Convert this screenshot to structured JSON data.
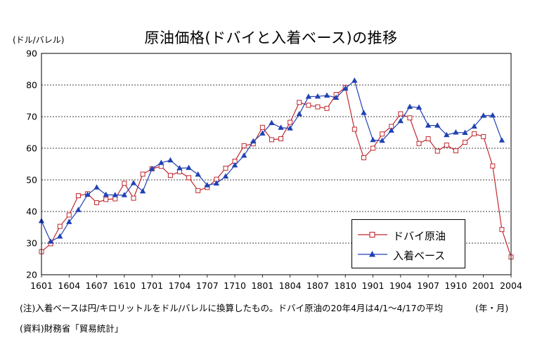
{
  "chart_data": {
    "type": "line",
    "title": "原油価格(ドバイと入着ベース)の推移",
    "ylabel": "(ドル/バレル)",
    "xlabel": "(年・月)",
    "ylim": [
      20,
      90
    ],
    "yticks": [
      20,
      30,
      40,
      50,
      60,
      70,
      80,
      90
    ],
    "grid": "horizontal dashed",
    "legend": "bottom-right",
    "x_tick_labels": [
      "1601",
      "1604",
      "1607",
      "1610",
      "1701",
      "1704",
      "1707",
      "1710",
      "1801",
      "1804",
      "1807",
      "1810",
      "1901",
      "1904",
      "1907",
      "1910",
      "2001",
      "2004"
    ],
    "x_range": [
      "2016-01",
      "2020-04"
    ],
    "series": [
      {
        "name": "ドバイ原油",
        "color": "#c0282e",
        "marker": "square",
        "start": "2016-01",
        "values": [
          27.3,
          29.8,
          35.3,
          38.9,
          45.0,
          45.6,
          42.8,
          43.8,
          44.0,
          48.9,
          44.2,
          51.8,
          53.5,
          54.3,
          51.4,
          52.6,
          50.7,
          46.6,
          47.6,
          50.2,
          53.7,
          55.9,
          60.8,
          61.4,
          66.6,
          62.7,
          63.0,
          68.2,
          74.5,
          73.6,
          73.1,
          72.6,
          77.0,
          79.2,
          66.0,
          57.0,
          60.0,
          64.5,
          66.9,
          70.9,
          69.6,
          61.5,
          63.0,
          59.1,
          61.0,
          59.2,
          61.9,
          64.6,
          63.7,
          54.4,
          34.3,
          25.6
        ]
      },
      {
        "name": "入着ベース",
        "color": "#2142b5",
        "marker": "triangle",
        "start": "2016-01",
        "values": [
          37.0,
          30.5,
          32.1,
          36.7,
          40.5,
          45.3,
          47.6,
          45.3,
          45.2,
          45.2,
          49.0,
          46.4,
          53.5,
          55.4,
          56.2,
          53.7,
          53.8,
          51.7,
          48.3,
          48.9,
          51.1,
          54.6,
          57.7,
          62.2,
          64.7,
          68.0,
          66.5,
          66.3,
          70.8,
          76.3,
          76.4,
          76.7,
          76.0,
          78.9,
          81.4,
          71.2,
          62.6,
          62.4,
          65.6,
          68.6,
          73.1,
          72.9,
          67.2,
          67.2,
          64.2,
          65.0,
          64.9,
          66.9,
          70.3,
          70.4,
          62.5
        ]
      }
    ]
  },
  "notes": {
    "note": "(注)入着ベースは円/キロリットルをドル/バレルに換算したもの。ドバイ原油の20年4月は4/1～4/17の平均",
    "source": "(資料)財務省「貿易統計」"
  }
}
